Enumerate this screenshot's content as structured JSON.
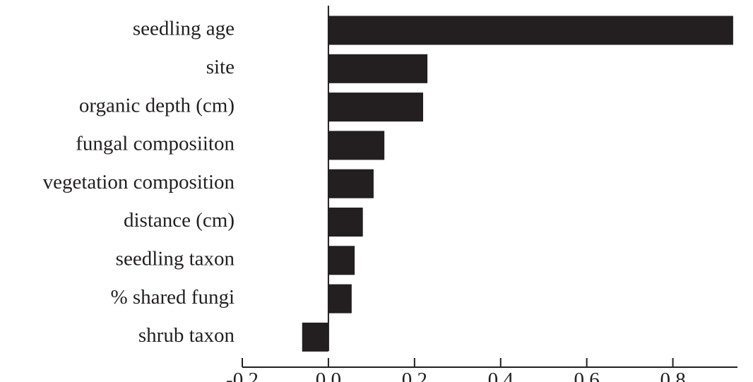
{
  "chart_data": {
    "type": "barh",
    "categories": [
      "seedling age",
      "site",
      "organic depth (cm)",
      "fungal composiiton",
      "vegetation composition",
      "distance (cm)",
      "seedling taxon",
      "% shared fungi",
      "shrub taxon"
    ],
    "values": [
      0.94,
      0.23,
      0.22,
      0.13,
      0.105,
      0.08,
      0.061,
      0.054,
      -0.061
    ],
    "color": "#231f20",
    "xlim": [
      -0.2,
      0.95
    ],
    "xticks": [
      -0.2,
      {
        "value": 0,
        "label": "0.0"
      },
      0.2,
      0.4,
      0.6,
      0.8
    ]
  }
}
